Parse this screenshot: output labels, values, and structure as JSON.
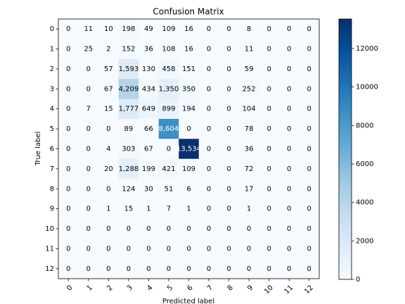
{
  "chart_data": {
    "type": "heatmap",
    "title": "Confusion Matrix",
    "xlabel": "Predicted label",
    "ylabel": "True label",
    "x_categories": [
      "0",
      "1",
      "2",
      "3",
      "4",
      "5",
      "6",
      "7",
      "8",
      "9",
      "10",
      "11",
      "12"
    ],
    "y_categories": [
      "0",
      "1",
      "2",
      "3",
      "4",
      "5",
      "6",
      "7",
      "8",
      "9",
      "10",
      "11",
      "12"
    ],
    "values": [
      [
        0,
        11,
        10,
        198,
        49,
        109,
        16,
        0,
        0,
        8,
        0,
        0,
        0
      ],
      [
        0,
        25,
        2,
        152,
        36,
        108,
        16,
        0,
        0,
        11,
        0,
        0,
        0
      ],
      [
        0,
        0,
        57,
        1593,
        130,
        458,
        151,
        0,
        0,
        59,
        0,
        0,
        0
      ],
      [
        0,
        0,
        67,
        4209,
        434,
        1350,
        350,
        0,
        0,
        252,
        0,
        0,
        0
      ],
      [
        0,
        7,
        15,
        1777,
        649,
        899,
        194,
        0,
        0,
        104,
        0,
        0,
        0
      ],
      [
        0,
        0,
        0,
        89,
        66,
        8604,
        0,
        0,
        0,
        78,
        0,
        0,
        0
      ],
      [
        0,
        0,
        4,
        303,
        67,
        0,
        13534,
        0,
        0,
        36,
        0,
        0,
        0
      ],
      [
        0,
        0,
        20,
        1288,
        199,
        421,
        109,
        0,
        0,
        72,
        0,
        0,
        0
      ],
      [
        0,
        0,
        0,
        124,
        30,
        51,
        6,
        0,
        0,
        17,
        0,
        0,
        0
      ],
      [
        0,
        0,
        1,
        15,
        1,
        7,
        1,
        0,
        0,
        1,
        0,
        0,
        0
      ],
      [
        0,
        0,
        0,
        0,
        0,
        0,
        0,
        0,
        0,
        0,
        0,
        0,
        0
      ],
      [
        0,
        0,
        0,
        0,
        0,
        0,
        0,
        0,
        0,
        0,
        0,
        0,
        0
      ],
      [
        0,
        0,
        0,
        0,
        0,
        0,
        0,
        0,
        0,
        0,
        0,
        0,
        0
      ]
    ],
    "value_labels": [
      [
        "0",
        "11",
        "10",
        "198",
        "49",
        "109",
        "16",
        "0",
        "0",
        "8",
        "0",
        "0",
        "0"
      ],
      [
        "0",
        "25",
        "2",
        "152",
        "36",
        "108",
        "16",
        "0",
        "0",
        "11",
        "0",
        "0",
        "0"
      ],
      [
        "0",
        "0",
        "57",
        "1,593",
        "130",
        "458",
        "151",
        "0",
        "0",
        "59",
        "0",
        "0",
        "0"
      ],
      [
        "0",
        "0",
        "67",
        "4,209",
        "434",
        "1,350",
        "350",
        "0",
        "0",
        "252",
        "0",
        "0",
        "0"
      ],
      [
        "0",
        "7",
        "15",
        "1,777",
        "649",
        "899",
        "194",
        "0",
        "0",
        "104",
        "0",
        "0",
        "0"
      ],
      [
        "0",
        "0",
        "0",
        "89",
        "66",
        "8,604",
        "0",
        "0",
        "0",
        "78",
        "0",
        "0",
        "0"
      ],
      [
        "0",
        "0",
        "4",
        "303",
        "67",
        "0",
        "13,534",
        "0",
        "0",
        "36",
        "0",
        "0",
        "0"
      ],
      [
        "0",
        "0",
        "20",
        "1,288",
        "199",
        "421",
        "109",
        "0",
        "0",
        "72",
        "0",
        "0",
        "0"
      ],
      [
        "0",
        "0",
        "0",
        "124",
        "30",
        "51",
        "6",
        "0",
        "0",
        "17",
        "0",
        "0",
        "0"
      ],
      [
        "0",
        "0",
        "1",
        "15",
        "1",
        "7",
        "1",
        "0",
        "0",
        "1",
        "0",
        "0",
        "0"
      ],
      [
        "0",
        "0",
        "0",
        "0",
        "0",
        "0",
        "0",
        "0",
        "0",
        "0",
        "0",
        "0",
        "0"
      ],
      [
        "0",
        "0",
        "0",
        "0",
        "0",
        "0",
        "0",
        "0",
        "0",
        "0",
        "0",
        "0",
        "0"
      ],
      [
        "0",
        "0",
        "0",
        "0",
        "0",
        "0",
        "0",
        "0",
        "0",
        "0",
        "0",
        "0",
        "0"
      ]
    ],
    "colormap": "Blues",
    "clim": [
      0,
      13534
    ],
    "cticks": [
      0,
      2000,
      4000,
      6000,
      8000,
      10000,
      12000
    ]
  }
}
